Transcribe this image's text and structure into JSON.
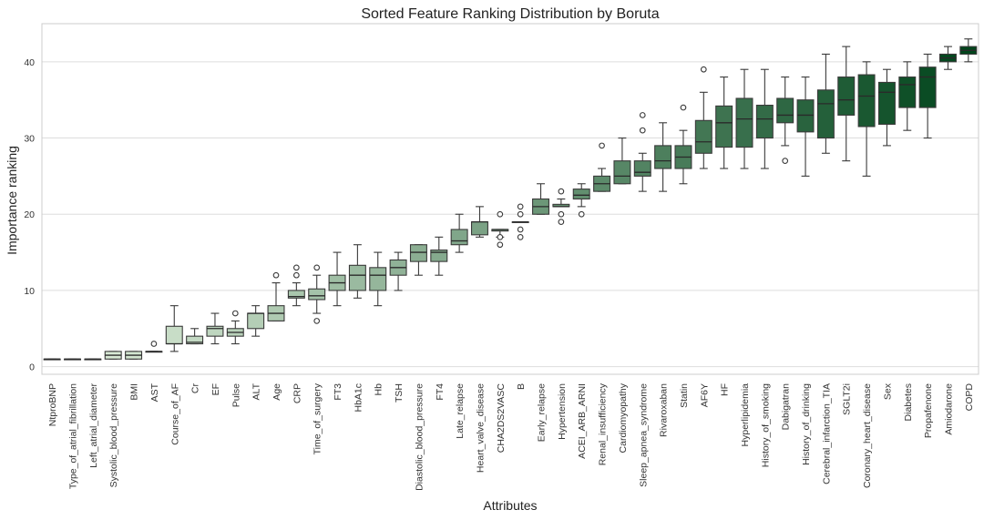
{
  "chart_data": {
    "type": "box",
    "title": "Sorted Feature Ranking Distribution by Boruta",
    "xlabel": "Attributes",
    "ylabel": "Importance ranking",
    "ylim": [
      -1,
      45
    ],
    "yticks": [
      0,
      10,
      20,
      30,
      40
    ],
    "grid": true,
    "color_scale": [
      "#e7f5e2",
      "#00441b"
    ],
    "series": [
      {
        "name": "NtproBNP",
        "min": 1,
        "q1": 1,
        "median": 1,
        "q3": 1,
        "max": 1,
        "outliers": []
      },
      {
        "name": "Type_of_atrial_fibrillation",
        "min": 1,
        "q1": 1,
        "median": 1,
        "q3": 1,
        "max": 1,
        "outliers": []
      },
      {
        "name": "Left_atrial_diameter",
        "min": 1,
        "q1": 1,
        "median": 1,
        "q3": 1,
        "max": 1,
        "outliers": []
      },
      {
        "name": "Systolic_blood_pressure",
        "min": 1,
        "q1": 1,
        "median": 1.5,
        "q3": 2,
        "max": 2,
        "outliers": []
      },
      {
        "name": "BMI",
        "min": 1,
        "q1": 1,
        "median": 1.5,
        "q3": 2,
        "max": 2,
        "outliers": []
      },
      {
        "name": "AST",
        "min": 2,
        "q1": 2,
        "median": 2,
        "q3": 2,
        "max": 2,
        "outliers": [
          3
        ]
      },
      {
        "name": "Course_of_AF",
        "min": 2,
        "q1": 3,
        "median": 3,
        "q3": 5.3,
        "max": 8,
        "outliers": []
      },
      {
        "name": "Cr",
        "min": 3,
        "q1": 3,
        "median": 3.2,
        "q3": 4,
        "max": 5,
        "outliers": []
      },
      {
        "name": "EF",
        "min": 3,
        "q1": 4,
        "median": 5,
        "q3": 5.3,
        "max": 7,
        "outliers": []
      },
      {
        "name": "Pulse",
        "min": 3,
        "q1": 4,
        "median": 4.5,
        "q3": 5,
        "max": 6,
        "outliers": [
          7
        ]
      },
      {
        "name": "ALT",
        "min": 4,
        "q1": 5,
        "median": 7,
        "q3": 7,
        "max": 8,
        "outliers": []
      },
      {
        "name": "Age",
        "min": 6,
        "q1": 6,
        "median": 7,
        "q3": 8,
        "max": 11,
        "outliers": [
          12
        ]
      },
      {
        "name": "CRP",
        "min": 8,
        "q1": 9,
        "median": 9.2,
        "q3": 10,
        "max": 11,
        "outliers": [
          12,
          13
        ]
      },
      {
        "name": "Time_of_surgery",
        "min": 7,
        "q1": 8.8,
        "median": 9.3,
        "q3": 10.2,
        "max": 12,
        "outliers": [
          6,
          13
        ]
      },
      {
        "name": "FT3",
        "min": 8,
        "q1": 10,
        "median": 11,
        "q3": 12,
        "max": 15,
        "outliers": []
      },
      {
        "name": "HbA1c",
        "min": 9,
        "q1": 10,
        "median": 12,
        "q3": 13.3,
        "max": 16,
        "outliers": []
      },
      {
        "name": "Hb",
        "min": 8,
        "q1": 10,
        "median": 12,
        "q3": 13,
        "max": 15,
        "outliers": []
      },
      {
        "name": "TSH",
        "min": 10,
        "q1": 12,
        "median": 13,
        "q3": 14,
        "max": 15,
        "outliers": []
      },
      {
        "name": "Diastolic_blood_pressure",
        "min": 12,
        "q1": 13.8,
        "median": 15,
        "q3": 16,
        "max": 16,
        "outliers": []
      },
      {
        "name": "FT4",
        "min": 12,
        "q1": 13.8,
        "median": 15,
        "q3": 15.3,
        "max": 17,
        "outliers": []
      },
      {
        "name": "Late_relapse",
        "min": 15,
        "q1": 16,
        "median": 16.5,
        "q3": 18,
        "max": 20,
        "outliers": []
      },
      {
        "name": "Heart_valve_disease",
        "min": 17,
        "q1": 17.3,
        "median": 19,
        "q3": 19,
        "max": 21,
        "outliers": []
      },
      {
        "name": "CHA2DS2VASC",
        "min": 17,
        "q1": 17.8,
        "median": 18,
        "q3": 18,
        "max": 18,
        "outliers": [
          16,
          17,
          20
        ]
      },
      {
        "name": "B",
        "min": 19,
        "q1": 19,
        "median": 19,
        "q3": 19,
        "max": 19,
        "outliers": [
          17,
          18,
          20,
          21
        ]
      },
      {
        "name": "Early_relapse",
        "min": 20,
        "q1": 20,
        "median": 21,
        "q3": 22,
        "max": 24,
        "outliers": []
      },
      {
        "name": "Hypertension",
        "min": 21,
        "q1": 21,
        "median": 21,
        "q3": 21.3,
        "max": 22,
        "outliers": [
          19,
          20,
          23
        ]
      },
      {
        "name": "ACEI_ARB_ARNI",
        "min": 21,
        "q1": 22,
        "median": 22.5,
        "q3": 23.3,
        "max": 24,
        "outliers": [
          20
        ]
      },
      {
        "name": "Renal_insufficiency",
        "min": 23,
        "q1": 23,
        "median": 24,
        "q3": 25,
        "max": 26,
        "outliers": [
          29
        ]
      },
      {
        "name": "Cardiomyopathy",
        "min": 24,
        "q1": 24,
        "median": 25,
        "q3": 27,
        "max": 30,
        "outliers": []
      },
      {
        "name": "Sleep_apnea_syndrome",
        "min": 23,
        "q1": 25,
        "median": 25.5,
        "q3": 27,
        "max": 28,
        "outliers": [
          31,
          33
        ]
      },
      {
        "name": "Rivaroxaban",
        "min": 23,
        "q1": 26,
        "median": 27,
        "q3": 29,
        "max": 32,
        "outliers": []
      },
      {
        "name": "Statin",
        "min": 24,
        "q1": 26,
        "median": 27.5,
        "q3": 29,
        "max": 31,
        "outliers": [
          34
        ]
      },
      {
        "name": "AF6Y",
        "min": 26,
        "q1": 28,
        "median": 29.5,
        "q3": 32.3,
        "max": 36,
        "outliers": [
          39
        ]
      },
      {
        "name": "HF",
        "min": 26,
        "q1": 28.8,
        "median": 32,
        "q3": 34.2,
        "max": 38,
        "outliers": []
      },
      {
        "name": "Hyperlipidemia",
        "min": 26,
        "q1": 28.8,
        "median": 32.5,
        "q3": 35.2,
        "max": 39,
        "outliers": []
      },
      {
        "name": "History_of_smoking",
        "min": 26,
        "q1": 30,
        "median": 32.5,
        "q3": 34.3,
        "max": 39,
        "outliers": []
      },
      {
        "name": "Dabigatran",
        "min": 29,
        "q1": 32,
        "median": 33,
        "q3": 35.2,
        "max": 38,
        "outliers": [
          27
        ]
      },
      {
        "name": "History_of_drinking",
        "min": 25,
        "q1": 30.8,
        "median": 33,
        "q3": 35,
        "max": 38,
        "outliers": []
      },
      {
        "name": "Cerebral_infarction_TIA",
        "min": 28,
        "q1": 30,
        "median": 34.5,
        "q3": 36.3,
        "max": 41,
        "outliers": []
      },
      {
        "name": "SGLT2i",
        "min": 27,
        "q1": 33,
        "median": 35,
        "q3": 38,
        "max": 42,
        "outliers": []
      },
      {
        "name": "Coronary_heart_disease",
        "min": 25,
        "q1": 31.5,
        "median": 35.5,
        "q3": 38.3,
        "max": 40,
        "outliers": []
      },
      {
        "name": "Sex",
        "min": 29,
        "q1": 31.8,
        "median": 36,
        "q3": 37.3,
        "max": 39,
        "outliers": []
      },
      {
        "name": "Diabetes",
        "min": 31,
        "q1": 34,
        "median": 37,
        "q3": 38,
        "max": 40,
        "outliers": []
      },
      {
        "name": "Propafenone",
        "min": 30,
        "q1": 34,
        "median": 38,
        "q3": 39.3,
        "max": 41,
        "outliers": []
      },
      {
        "name": "Amiodarone",
        "min": 39,
        "q1": 40,
        "median": 40.5,
        "q3": 41,
        "max": 42,
        "outliers": []
      },
      {
        "name": "COPD",
        "min": 40,
        "q1": 41,
        "median": 41.5,
        "q3": 42,
        "max": 43,
        "outliers": []
      }
    ]
  }
}
